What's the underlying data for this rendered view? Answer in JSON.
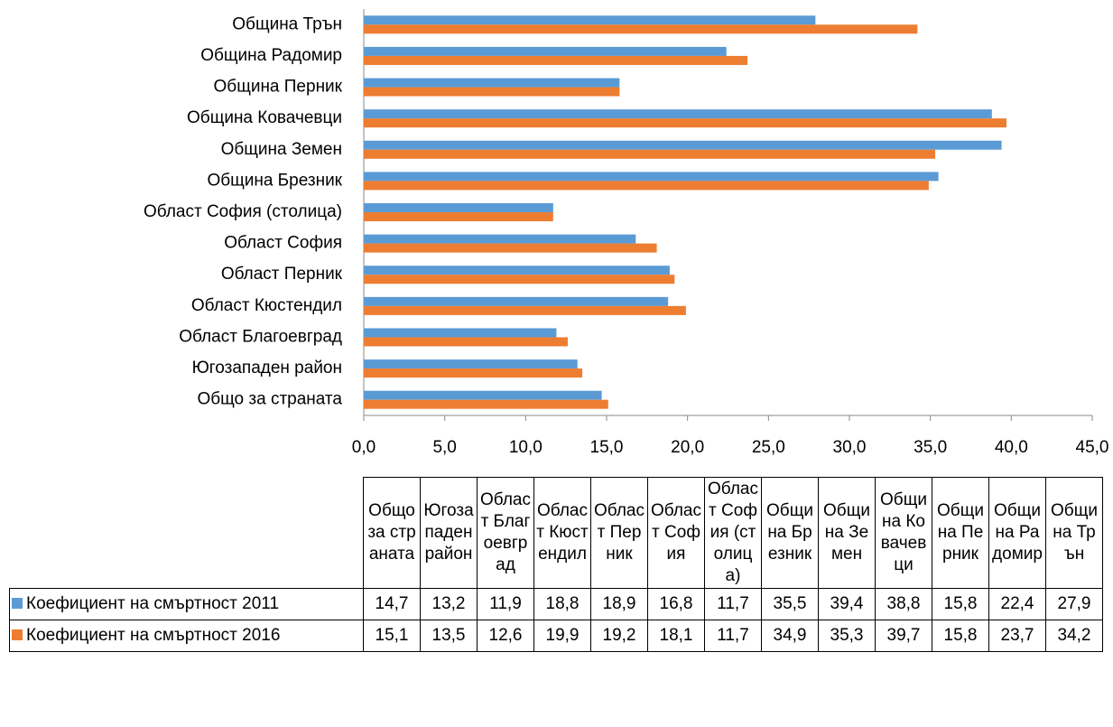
{
  "chart_data": {
    "type": "bar",
    "orientation": "horizontal",
    "categories": [
      "Общо за страната",
      "Югозападен район",
      "Област Благоевград",
      "Област Кюстендил",
      "Област Перник",
      "Област София",
      "Област София (столица)",
      "Община Брезник",
      "Община Земен",
      "Община Ковачевци",
      "Община Перник",
      "Община Радомир",
      "Община Трън"
    ],
    "series": [
      {
        "name": "Коефициент на смъртност 2011",
        "color": "#5b9bd5",
        "values": [
          14.7,
          13.2,
          11.9,
          18.8,
          18.9,
          16.8,
          11.7,
          35.5,
          39.4,
          38.8,
          15.8,
          22.4,
          27.9
        ],
        "value_labels": [
          "14,7",
          "13,2",
          "11,9",
          "18,8",
          "18,9",
          "16,8",
          "11,7",
          "35,5",
          "39,4",
          "38,8",
          "15,8",
          "22,4",
          "27,9"
        ]
      },
      {
        "name": "Коефициент на смъртност 2016",
        "color": "#ed7d31",
        "values": [
          15.1,
          13.5,
          12.6,
          19.9,
          19.2,
          18.1,
          11.7,
          34.9,
          35.3,
          39.7,
          15.8,
          23.7,
          34.2
        ],
        "value_labels": [
          "15,1",
          "13,5",
          "12,6",
          "19,9",
          "19,2",
          "18,1",
          "11,7",
          "34,9",
          "35,3",
          "39,7",
          "15,8",
          "23,7",
          "34,2"
        ]
      }
    ],
    "xlim": [
      0,
      45
    ],
    "xticks": [
      {
        "value": 0,
        "label": "0,0"
      },
      {
        "value": 5,
        "label": "5,0"
      },
      {
        "value": 10,
        "label": "10,0"
      },
      {
        "value": 15,
        "label": "15,0"
      },
      {
        "value": 20,
        "label": "20,0"
      },
      {
        "value": 25,
        "label": "25,0"
      },
      {
        "value": 30,
        "label": "30,0"
      },
      {
        "value": 35,
        "label": "35,0"
      },
      {
        "value": 40,
        "label": "40,0"
      },
      {
        "value": 45,
        "label": "45,0"
      }
    ],
    "grid": false,
    "data_table": true
  }
}
